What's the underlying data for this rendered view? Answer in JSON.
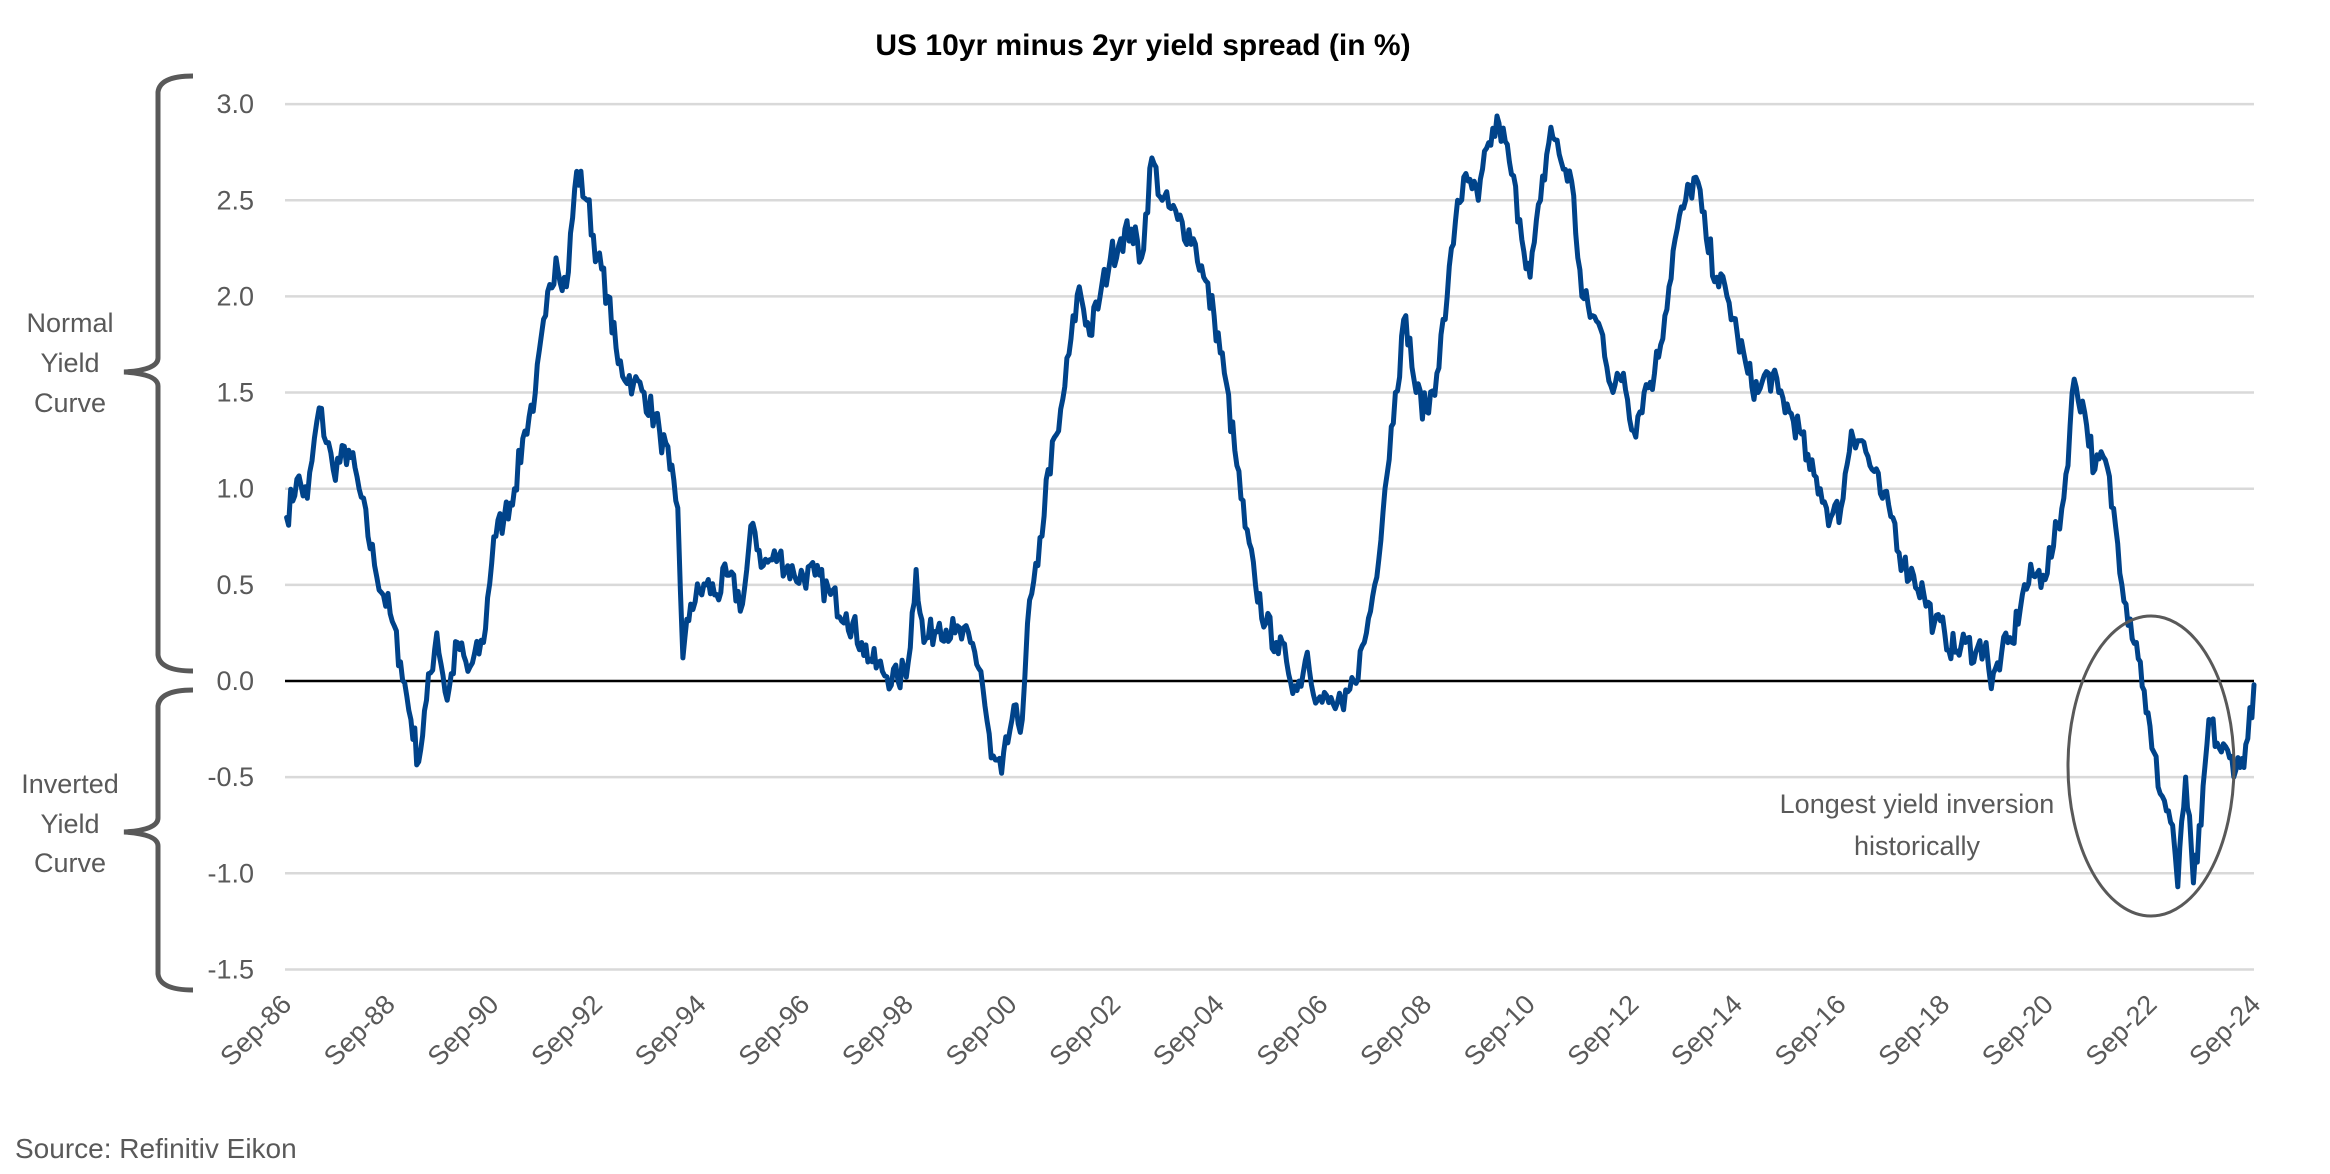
{
  "chart_data": {
    "type": "line",
    "title": "US 10yr minus 2yr yield spread (in %)",
    "xlabel": "",
    "ylabel": "",
    "ylim": [
      -1.5,
      3.0
    ],
    "xlim": [
      1986.67,
      2024.67
    ],
    "grid": true,
    "yticks": [
      3.0,
      2.5,
      2.0,
      1.5,
      1.0,
      0.5,
      0.0,
      -0.5,
      -1.0,
      -1.5
    ],
    "ytick_labels": [
      "3.0",
      "2.5",
      "2.0",
      "1.5",
      "1.0",
      "0.5",
      "0.0",
      "-0.5",
      "-1.0",
      "-1.5"
    ],
    "xtick_labels": [
      "Sep-86",
      "Sep-88",
      "Sep-90",
      "Sep-92",
      "Sep-94",
      "Sep-96",
      "Sep-98",
      "Sep-00",
      "Sep-02",
      "Sep-04",
      "Sep-06",
      "Sep-08",
      "Sep-10",
      "Sep-12",
      "Sep-14",
      "Sep-16",
      "Sep-18",
      "Sep-20",
      "Sep-22",
      "Sep-24"
    ],
    "series": [
      {
        "name": "US 10yr minus 2yr yield spread",
        "color": "#00438A",
        "x": [
          1986.7,
          1986.9,
          1987.1,
          1987.33,
          1987.6,
          1987.9,
          1988.1,
          1988.4,
          1988.7,
          1988.9,
          1989.1,
          1989.25,
          1989.4,
          1989.6,
          1989.8,
          1990.0,
          1990.2,
          1990.5,
          1990.7,
          1990.9,
          1991.1,
          1991.3,
          1991.5,
          1991.7,
          1991.9,
          1992.1,
          1992.3,
          1992.5,
          1992.7,
          1992.9,
          1993.1,
          1993.4,
          1993.6,
          1993.9,
          1994.1,
          1994.25,
          1994.35,
          1994.5,
          1994.8,
          1995.0,
          1995.2,
          1995.5,
          1995.7,
          1995.9,
          1996.2,
          1996.5,
          1996.9,
          1997.2,
          1997.5,
          1997.8,
          1998.0,
          1998.2,
          1998.5,
          1998.7,
          1998.85,
          1999.0,
          1999.3,
          1999.6,
          1999.9,
          2000.1,
          2000.3,
          2000.5,
          2000.7,
          2000.9,
          2001.0,
          2001.2,
          2001.4,
          2001.6,
          2001.8,
          2002.0,
          2002.2,
          2002.4,
          2002.6,
          2002.8,
          2003.0,
          2003.2,
          2003.4,
          2003.6,
          2003.9,
          2004.2,
          2004.4,
          2004.6,
          2004.8,
          2005.0,
          2005.2,
          2005.4,
          2005.6,
          2005.8,
          2006.0,
          2006.2,
          2006.4,
          2006.6,
          2006.9,
          2007.1,
          2007.3,
          2007.5,
          2007.7,
          2007.9,
          2008.1,
          2008.3,
          2008.5,
          2008.7,
          2008.9,
          2009.1,
          2009.3,
          2009.5,
          2009.7,
          2009.9,
          2010.1,
          2010.3,
          2010.5,
          2010.7,
          2010.9,
          2011.1,
          2011.3,
          2011.5,
          2011.7,
          2011.9,
          2012.1,
          2012.3,
          2012.5,
          2012.7,
          2012.9,
          2013.1,
          2013.3,
          2013.5,
          2013.7,
          2013.9,
          2014.1,
          2014.3,
          2014.5,
          2014.7,
          2014.9,
          2015.1,
          2015.3,
          2015.5,
          2015.7,
          2015.9,
          2016.1,
          2016.3,
          2016.5,
          2016.7,
          2016.9,
          2017.1,
          2017.3,
          2017.5,
          2017.7,
          2017.9,
          2018.1,
          2018.3,
          2018.5,
          2018.7,
          2018.9,
          2019.1,
          2019.3,
          2019.5,
          2019.6,
          2019.8,
          2020.0,
          2020.2,
          2020.4,
          2020.6,
          2020.8,
          2021.0,
          2021.2,
          2021.4,
          2021.6,
          2021.8,
          2022.0,
          2022.2,
          2022.4,
          2022.55,
          2022.7,
          2022.9,
          2023.1,
          2023.2,
          2023.35,
          2023.5,
          2023.65,
          2023.8,
          2024.0,
          2024.2,
          2024.4,
          2024.55,
          2024.67
        ],
        "values": [
          0.85,
          1.05,
          0.95,
          1.42,
          1.1,
          1.2,
          1.0,
          0.6,
          0.35,
          0.1,
          -0.2,
          -0.42,
          -0.1,
          0.25,
          -0.1,
          0.2,
          0.05,
          0.2,
          0.75,
          0.85,
          1.0,
          1.3,
          1.5,
          1.9,
          2.2,
          2.05,
          2.65,
          2.5,
          2.2,
          2.0,
          1.65,
          1.55,
          1.5,
          1.3,
          1.1,
          0.9,
          0.12,
          0.4,
          0.5,
          0.45,
          0.55,
          0.4,
          0.82,
          0.6,
          0.65,
          0.55,
          0.55,
          0.45,
          0.35,
          0.2,
          0.1,
          0.05,
          0.0,
          0.1,
          0.58,
          0.2,
          0.3,
          0.25,
          0.2,
          0.05,
          -0.4,
          -0.48,
          -0.2,
          -0.2,
          0.3,
          0.6,
          1.1,
          1.3,
          1.7,
          2.05,
          1.8,
          2.0,
          2.2,
          2.3,
          2.35,
          2.2,
          2.72,
          2.5,
          2.4,
          2.3,
          2.1,
          1.9,
          1.6,
          1.2,
          0.8,
          0.5,
          0.3,
          0.2,
          0.1,
          -0.05,
          0.15,
          -0.1,
          -0.12,
          -0.15,
          0.0,
          0.2,
          0.5,
          1.0,
          1.5,
          1.9,
          1.5,
          1.4,
          1.6,
          2.0,
          2.5,
          2.6,
          2.5,
          2.8,
          2.9,
          2.7,
          2.4,
          2.1,
          2.5,
          2.88,
          2.7,
          2.6,
          2.0,
          1.9,
          1.8,
          1.5,
          1.6,
          1.3,
          1.5,
          1.6,
          1.9,
          2.3,
          2.5,
          2.62,
          2.3,
          2.1,
          2.0,
          1.8,
          1.6,
          1.5,
          1.6,
          1.5,
          1.4,
          1.3,
          1.1,
          1.0,
          0.85,
          0.9,
          1.3,
          1.25,
          1.1,
          0.95,
          0.85,
          0.6,
          0.55,
          0.45,
          0.3,
          0.25,
          0.15,
          0.2,
          0.15,
          0.2,
          -0.04,
          0.15,
          0.2,
          0.45,
          0.55,
          0.55,
          0.7,
          0.95,
          1.57,
          1.4,
          1.1,
          1.15,
          0.8,
          0.4,
          0.2,
          -0.05,
          -0.35,
          -0.6,
          -0.75,
          -1.07,
          -0.5,
          -1.05,
          -0.75,
          -0.2,
          -0.35,
          -0.4,
          -0.45,
          -0.3,
          -0.02
        ]
      }
    ],
    "annotations": [
      {
        "text_lines": [
          "Longest yield inversion",
          "historically"
        ]
      }
    ],
    "side_labels": {
      "normal": [
        "Normal",
        "Yield",
        "Curve"
      ],
      "inverted": [
        "Inverted",
        "Yield",
        "Curve"
      ]
    },
    "source": "Source: Refinitiv Eikon"
  }
}
